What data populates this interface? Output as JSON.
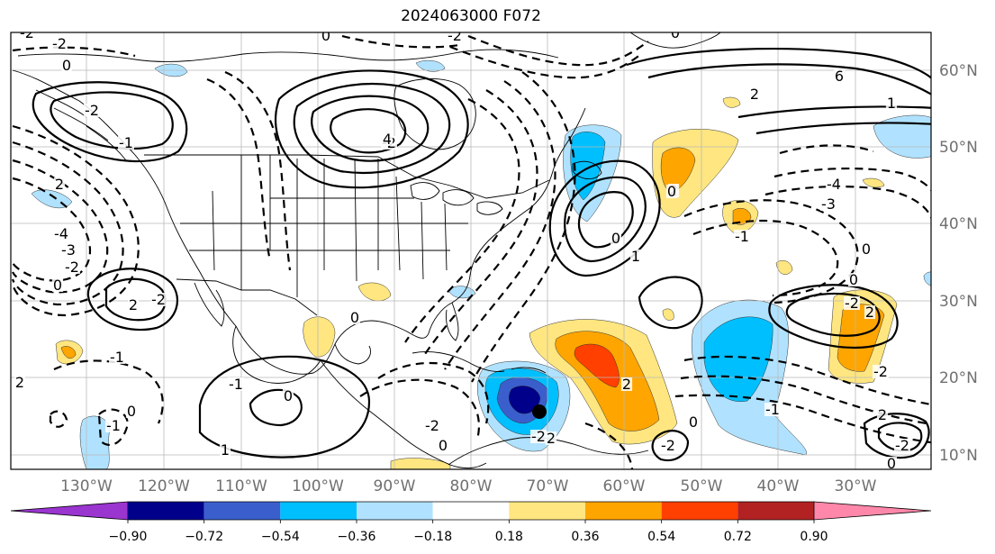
{
  "title": "2024063000 F072",
  "map": {
    "lon_labels": [
      "130°W",
      "120°W",
      "110°W",
      "100°W",
      "90°W",
      "80°W",
      "70°W",
      "60°W",
      "50°W",
      "40°W",
      "30°W"
    ],
    "lat_labels": [
      "60°N",
      "50°N",
      "40°N",
      "30°N",
      "20°N",
      "10°N"
    ]
  },
  "colorbar": {
    "tick_labels": [
      "−0.90",
      "−0.72",
      "−0.54",
      "−0.36",
      "−0.18",
      "0.18",
      "0.36",
      "0.54",
      "0.72",
      "0.90"
    ],
    "colors": [
      "#9a35d0",
      "#00008b",
      "#3a5fcd",
      "#00bfff",
      "#b0e2ff",
      "#ffffff",
      "#ffe680",
      "#ffa500",
      "#ff4000",
      "#b22222",
      "#ff88aa"
    ]
  },
  "contour_labels": [
    "-2",
    "0",
    "2",
    "0",
    "-2",
    "-1",
    "-2",
    "-4",
    "-3",
    "-2",
    "0",
    "2",
    "-2",
    "0",
    "-1",
    "2",
    "0",
    "-1",
    "1",
    "0",
    "-2",
    "0",
    "-2",
    "2",
    "-2",
    "4",
    "6",
    "2",
    "-4",
    "-3",
    "0",
    "0",
    "-2",
    "2",
    "1",
    "-1",
    "-2",
    "2",
    "0",
    "-2",
    "1",
    "0",
    "2",
    "2",
    "-2",
    "0",
    "-2",
    "-1",
    "0",
    "-1",
    "0"
  ]
}
